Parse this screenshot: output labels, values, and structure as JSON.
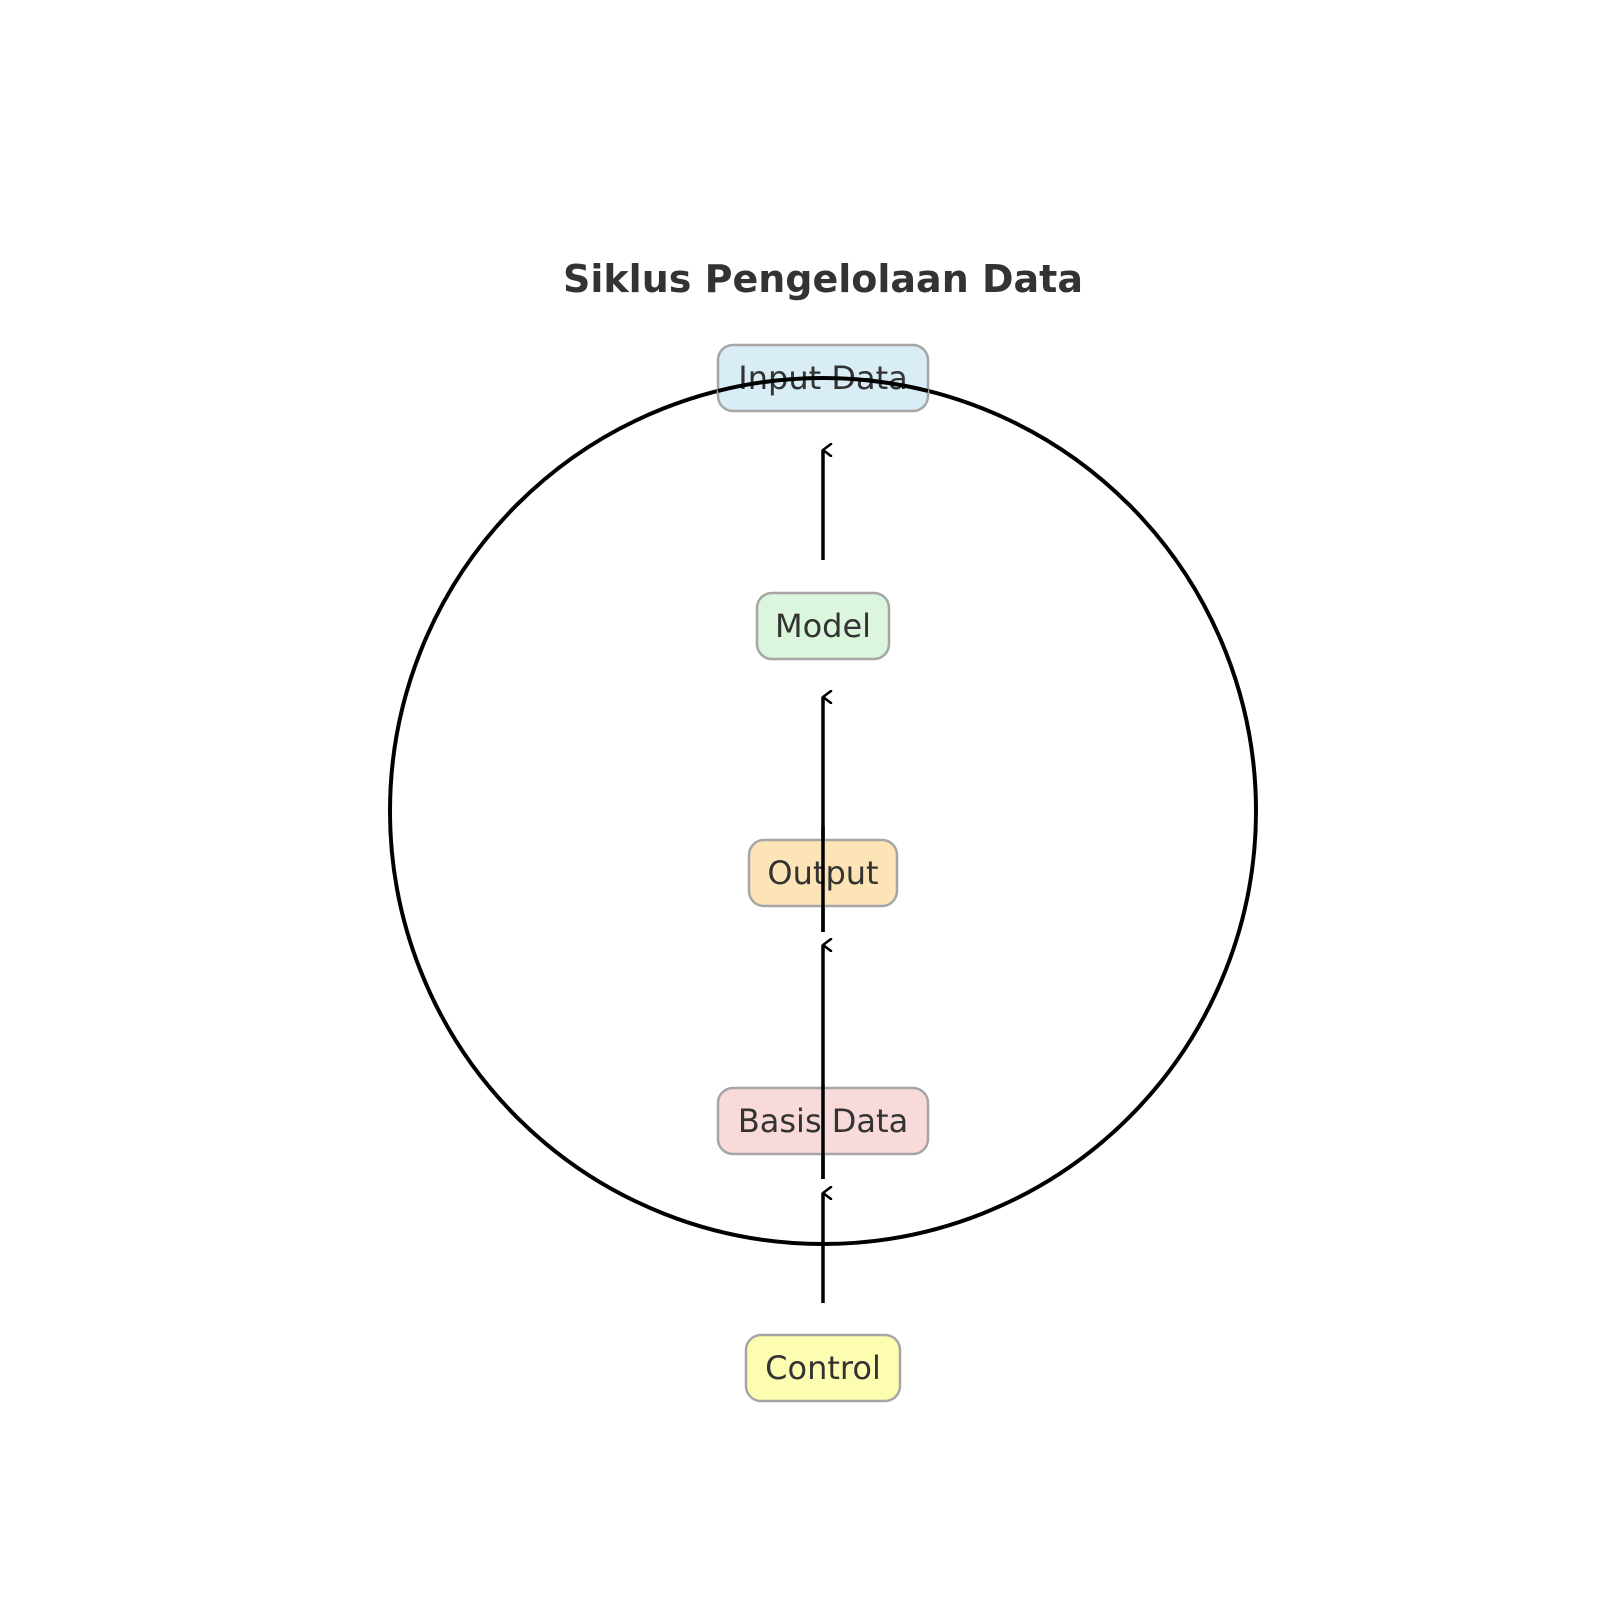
{
  "title": "Siklus Pengelolaan Data",
  "colors": {
    "text": "#333333",
    "line": "#000000",
    "node_border": "#a6a6a6"
  },
  "nodes": [
    {
      "label": "Input Data",
      "fill": "#d6ecf5"
    },
    {
      "label": "Model",
      "fill": "#d9f6db"
    },
    {
      "label": "Output",
      "fill": "#fde3b3"
    },
    {
      "label": "Basis Data",
      "fill": "#f8d8d9"
    },
    {
      "label": "Control",
      "fill": "#fdfdad"
    }
  ]
}
